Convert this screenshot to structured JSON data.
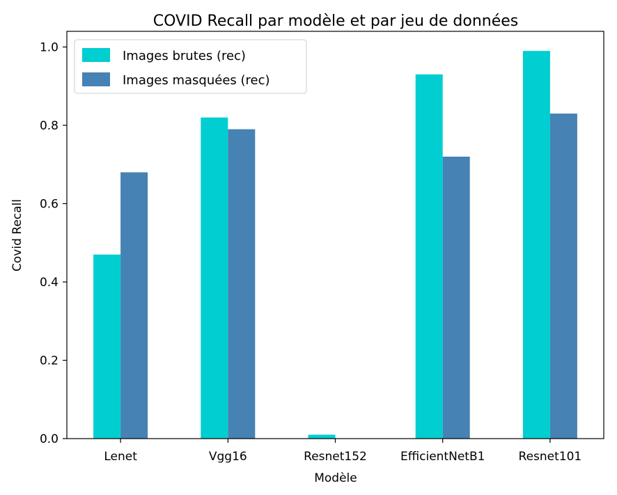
{
  "chart_data": {
    "type": "bar",
    "title": "COVID Recall par modèle et par jeu de données",
    "xlabel": "Modèle",
    "ylabel": "Covid Recall",
    "categories": [
      "Lenet",
      "Vgg16",
      "Resnet152",
      "EfficientNetB1",
      "Resnet101"
    ],
    "series": [
      {
        "name": "Images brutes (rec)",
        "color": "#00CED1",
        "values": [
          0.47,
          0.82,
          0.01,
          0.93,
          0.99
        ]
      },
      {
        "name": "Images masquées (rec)",
        "color": "#4682B4",
        "values": [
          0.68,
          0.79,
          0.0,
          0.72,
          0.83
        ]
      }
    ],
    "ylim": [
      0,
      1.04
    ],
    "yticks": [
      "0.0",
      "0.2",
      "0.4",
      "0.6",
      "0.8",
      "1.0"
    ],
    "ytick_values": [
      0,
      0.2,
      0.4,
      0.6,
      0.8,
      1.0
    ],
    "grid": false,
    "legend_position": "top-left"
  }
}
